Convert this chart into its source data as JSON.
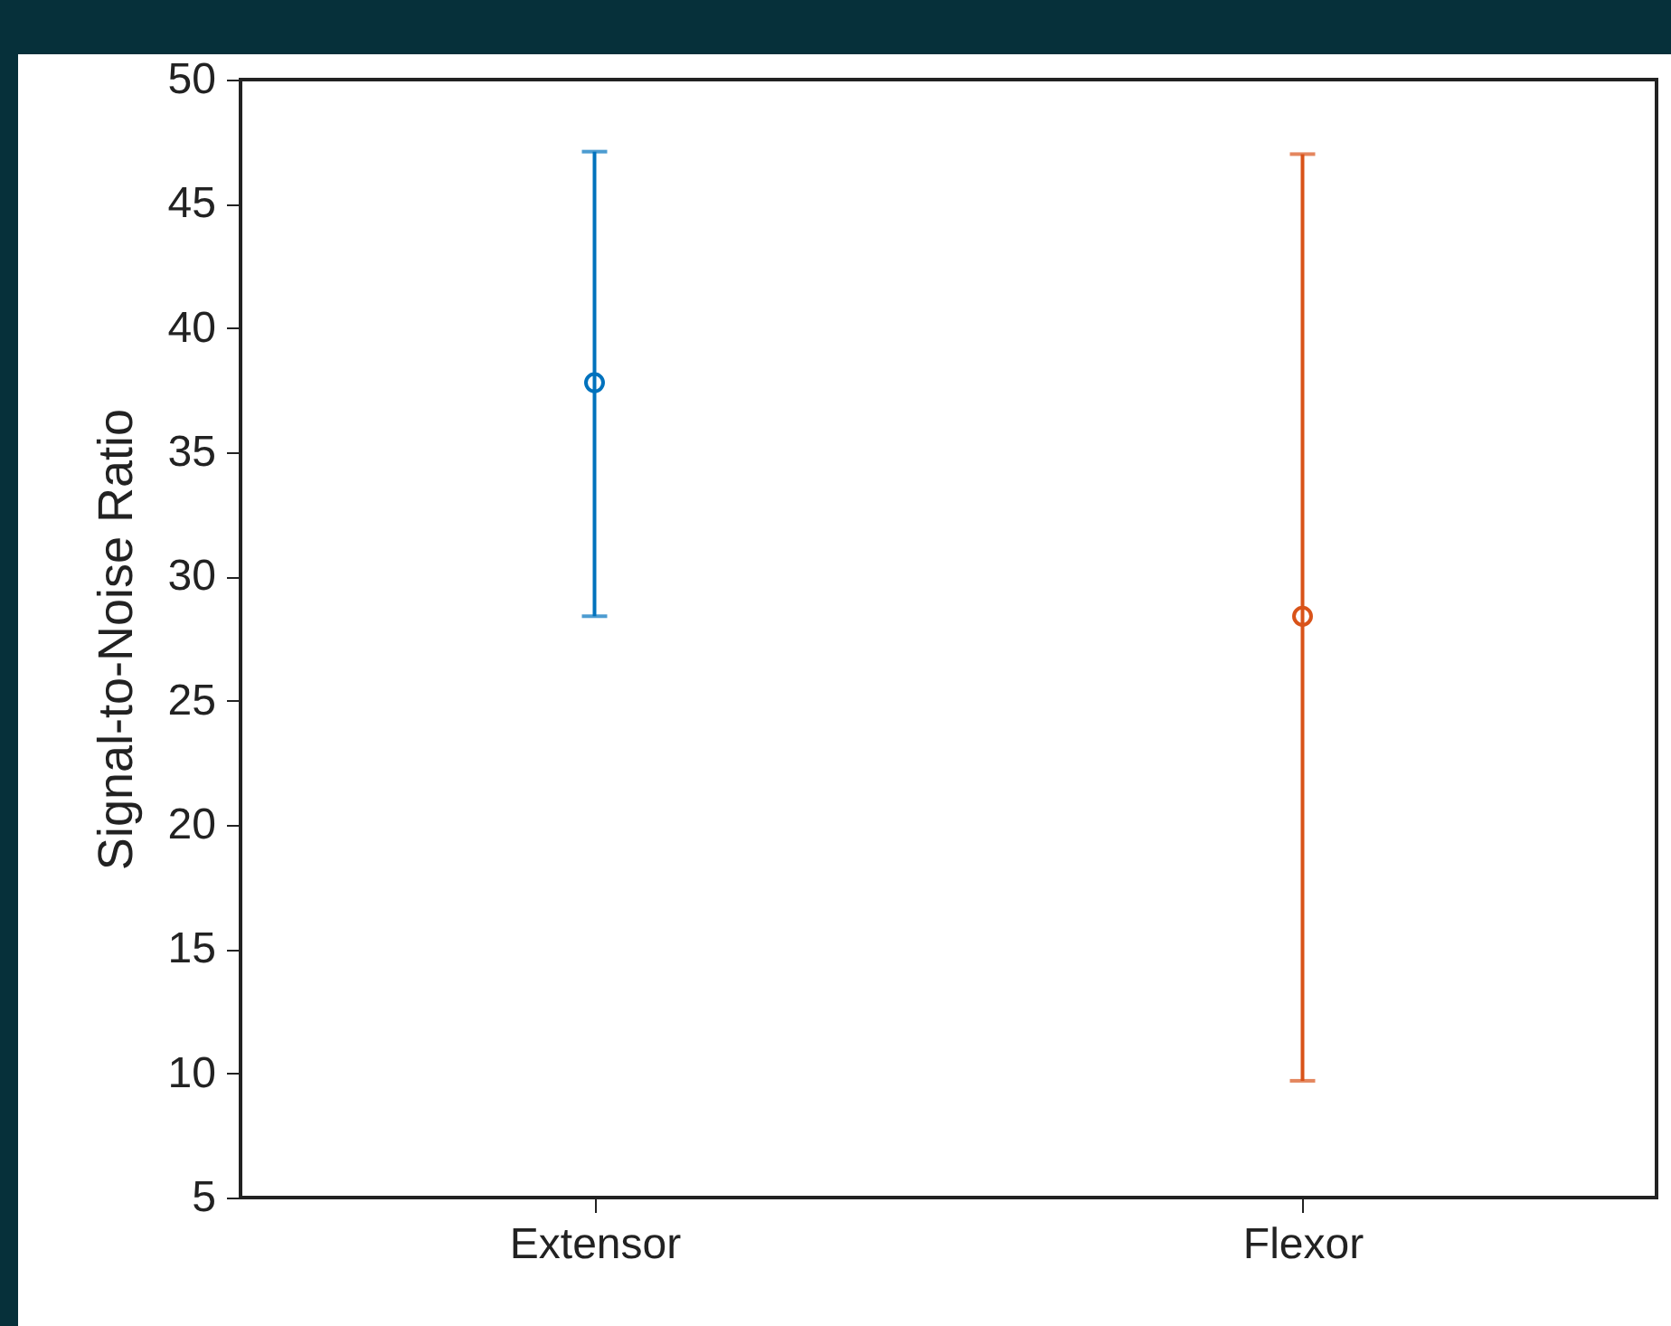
{
  "chart_data": {
    "type": "scatter",
    "ylabel": "Signal-to-Noise Ratio",
    "categories": [
      "Extensor",
      "Flexor"
    ],
    "values": [
      37.8,
      28.4
    ],
    "colors": [
      "#0072bd",
      "#d95319"
    ],
    "errors": [
      [
        28.4,
        47.1
      ],
      [
        9.7,
        47.0
      ]
    ],
    "ylim": [
      5,
      50
    ],
    "yticks": [
      5,
      10,
      15,
      20,
      25,
      30,
      35,
      40,
      45,
      50
    ],
    "marker": "circle"
  }
}
